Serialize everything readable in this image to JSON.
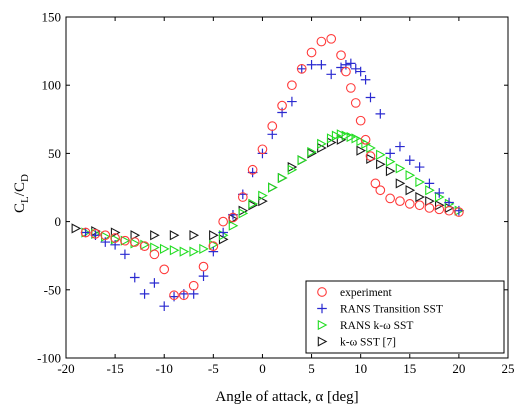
{
  "chart_data": {
    "type": "scatter",
    "xlabel": "Angle of attack, α [deg]",
    "ylabel": {
      "main": "C",
      "sub1": "L",
      "sep": "/C",
      "sub2": "D"
    },
    "xlim": [
      -20,
      25
    ],
    "ylim": [
      -100,
      150
    ],
    "xticks": [
      "-20",
      "-15",
      "-10",
      "-5",
      "0",
      "5",
      "10",
      "15",
      "20",
      "25"
    ],
    "yticks": [
      "-100",
      "-50",
      "0",
      "50",
      "100",
      "150"
    ],
    "grid": false,
    "legend_position": "bottom-right",
    "series": [
      {
        "name": "experiment",
        "marker": "circle",
        "color": "#ff3b3b",
        "points": [
          [
            -18,
            -8
          ],
          [
            -17,
            -9
          ],
          [
            -16,
            -10
          ],
          [
            -15,
            -12
          ],
          [
            -14,
            -14
          ],
          [
            -13,
            -15
          ],
          [
            -12,
            -18
          ],
          [
            -11,
            -24
          ],
          [
            -10,
            -35
          ],
          [
            -9,
            -54
          ],
          [
            -8,
            -54
          ],
          [
            -7,
            -47
          ],
          [
            -6,
            -33
          ],
          [
            -5,
            -18
          ],
          [
            -4,
            0
          ],
          [
            -3,
            3
          ],
          [
            -2,
            18
          ],
          [
            -1,
            38
          ],
          [
            0,
            53
          ],
          [
            1,
            70
          ],
          [
            2,
            85
          ],
          [
            3,
            100
          ],
          [
            4,
            112
          ],
          [
            5,
            124
          ],
          [
            6,
            132
          ],
          [
            7,
            134
          ],
          [
            8,
            122
          ],
          [
            8.5,
            110
          ],
          [
            9,
            98
          ],
          [
            9.5,
            87
          ],
          [
            10,
            74
          ],
          [
            10.5,
            60
          ],
          [
            11,
            48
          ],
          [
            11.5,
            28
          ],
          [
            12,
            23
          ],
          [
            13,
            17
          ],
          [
            14,
            15
          ],
          [
            15,
            13
          ],
          [
            16,
            12
          ],
          [
            17,
            10
          ],
          [
            18,
            9
          ],
          [
            19,
            8
          ],
          [
            20,
            7
          ]
        ]
      },
      {
        "name": "RANS Transition SST",
        "marker": "plus",
        "color": "#2a2ad0",
        "points": [
          [
            -18,
            -8
          ],
          [
            -17,
            -10
          ],
          [
            -16,
            -15
          ],
          [
            -15,
            -17
          ],
          [
            -14,
            -24
          ],
          [
            -13,
            -41
          ],
          [
            -12,
            -53
          ],
          [
            -11,
            -45
          ],
          [
            -10,
            -62
          ],
          [
            -9,
            -55
          ],
          [
            -8,
            -53
          ],
          [
            -7,
            -53
          ],
          [
            -6,
            -40
          ],
          [
            -5,
            -22
          ],
          [
            -4,
            -8
          ],
          [
            -3,
            5
          ],
          [
            -2,
            20
          ],
          [
            -1,
            36
          ],
          [
            0,
            50
          ],
          [
            1,
            64
          ],
          [
            2,
            80
          ],
          [
            3,
            88
          ],
          [
            4,
            112
          ],
          [
            5,
            115
          ],
          [
            6,
            115
          ],
          [
            7,
            108
          ],
          [
            8,
            113
          ],
          [
            8.5,
            115
          ],
          [
            9,
            116
          ],
          [
            9.5,
            112
          ],
          [
            10,
            110
          ],
          [
            10.5,
            104
          ],
          [
            11,
            91
          ],
          [
            12,
            79
          ],
          [
            13,
            50
          ],
          [
            14,
            55
          ],
          [
            15,
            45
          ],
          [
            16,
            40
          ],
          [
            17,
            28
          ],
          [
            18,
            21
          ],
          [
            19,
            14
          ],
          [
            20,
            8
          ]
        ]
      },
      {
        "name": "RANS k-ω SST",
        "marker": "triangle-right",
        "color": "#22dd22",
        "points": [
          [
            -18,
            -8
          ],
          [
            -17,
            -9
          ],
          [
            -16,
            -11
          ],
          [
            -15,
            -13
          ],
          [
            -14,
            -14
          ],
          [
            -13,
            -16
          ],
          [
            -12,
            -17
          ],
          [
            -11,
            -19
          ],
          [
            -10,
            -20
          ],
          [
            -9,
            -21
          ],
          [
            -8,
            -22
          ],
          [
            -7,
            -22
          ],
          [
            -6,
            -20
          ],
          [
            -5,
            -17
          ],
          [
            -4,
            -10
          ],
          [
            -3,
            -3
          ],
          [
            -2,
            6
          ],
          [
            -1,
            13
          ],
          [
            0,
            19
          ],
          [
            1,
            25
          ],
          [
            2,
            32
          ],
          [
            3,
            38
          ],
          [
            4,
            45
          ],
          [
            5,
            51
          ],
          [
            6,
            57
          ],
          [
            7,
            61
          ],
          [
            7.5,
            63
          ],
          [
            8,
            64
          ],
          [
            8.5,
            63
          ],
          [
            9,
            62
          ],
          [
            9.5,
            61
          ],
          [
            10,
            59
          ],
          [
            10.5,
            57
          ],
          [
            11,
            54
          ],
          [
            12,
            49
          ],
          [
            13,
            44
          ],
          [
            14,
            39
          ],
          [
            15,
            34
          ],
          [
            16,
            29
          ],
          [
            17,
            23
          ],
          [
            18,
            18
          ],
          [
            19,
            13
          ],
          [
            20,
            8
          ]
        ]
      },
      {
        "name": "k-ω SST [7]",
        "marker": "triangle-right",
        "color": "#1a1a1a",
        "points": [
          [
            -19,
            -5
          ],
          [
            -17,
            -7
          ],
          [
            -15,
            -8
          ],
          [
            -13,
            -10
          ],
          [
            -11,
            -10
          ],
          [
            -9,
            -10
          ],
          [
            -7,
            -10
          ],
          [
            -5,
            -10
          ],
          [
            -4,
            -13
          ],
          [
            -3,
            2
          ],
          [
            -2,
            8
          ],
          [
            -1,
            12
          ],
          [
            0,
            15
          ],
          [
            1,
            25
          ],
          [
            2,
            32
          ],
          [
            3,
            40
          ],
          [
            4,
            45
          ],
          [
            5,
            50
          ],
          [
            6,
            54
          ],
          [
            7,
            58
          ],
          [
            8,
            60
          ],
          [
            10,
            52
          ],
          [
            11,
            46
          ],
          [
            12,
            42
          ],
          [
            13,
            37
          ],
          [
            14,
            28
          ],
          [
            15,
            23
          ],
          [
            16,
            18
          ],
          [
            17,
            15
          ],
          [
            18,
            12
          ],
          [
            19,
            10
          ]
        ]
      }
    ]
  }
}
